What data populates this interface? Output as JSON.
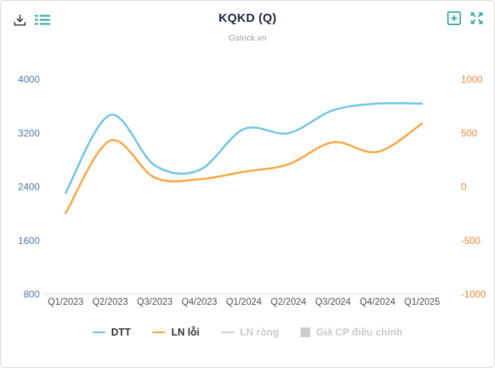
{
  "header": {
    "title": "KQKD (Q)",
    "subtitle": "Gstock.vn",
    "toolbar_left": [
      {
        "icon": "download-icon"
      },
      {
        "icon": "list-icon"
      }
    ],
    "toolbar_right": [
      {
        "icon": "plus-square-icon"
      },
      {
        "icon": "fullscreen-icon"
      }
    ]
  },
  "colors": {
    "accent_teal": "#2aa79e",
    "dark_icon": "#3e4a56",
    "dtt_line": "#6ec4e8",
    "ln_line": "#f7a742",
    "left_axis_label": "#4a74a8",
    "right_axis_label": "#ee8434",
    "x_axis_label": "#4f4f4f",
    "axis_line": "#e0e0e0",
    "legend_disabled": "#cccccc",
    "title_text": "#1b2740",
    "subtitle_text": "#9b9b9b"
  },
  "chart_data": {
    "type": "line",
    "smoothing": "spline",
    "grid": "off",
    "legend_position": "bottom",
    "title": "KQKD (Q)",
    "subtitle": "Gstock.vn",
    "categories": [
      "Q1/2023",
      "Q2/2023",
      "Q3/2023",
      "Q4/2023",
      "Q1/2024",
      "Q2/2024",
      "Q3/2024",
      "Q4/2024",
      "Q1/2025"
    ],
    "y_axis_left": {
      "ticks": [
        4000,
        3200,
        2400,
        1600,
        800
      ],
      "min": 800,
      "max": 4000,
      "color": "#4a74a8"
    },
    "y_axis_right": {
      "ticks": [
        1000,
        500,
        0,
        -500,
        -1000
      ],
      "min": -1000,
      "max": 1000,
      "color": "#ee8434"
    },
    "series": [
      {
        "name": "DTT",
        "axis": "left",
        "color": "#6ec4e8",
        "visible": true,
        "values": [
          2310,
          3470,
          2720,
          2650,
          3260,
          3200,
          3540,
          3640,
          3640
        ]
      },
      {
        "name": "LN lỗi",
        "axis": "right",
        "color": "#f7a742",
        "visible": true,
        "values": [
          -245,
          430,
          85,
          70,
          140,
          210,
          415,
          325,
          590
        ]
      },
      {
        "name": "LN ròng",
        "axis": "right",
        "color": "#cccccc",
        "visible": false,
        "values": []
      },
      {
        "name": "Giá CP điều chỉnh",
        "axis": "right",
        "color": "#cccccc",
        "visible": false,
        "values": []
      }
    ]
  },
  "legend": {
    "items": [
      {
        "label": "DTT",
        "marker": "line",
        "color": "#6ec4e8",
        "active": true
      },
      {
        "label": "LN lỗi",
        "marker": "line",
        "color": "#f7a742",
        "active": true
      },
      {
        "label": "LN ròng",
        "marker": "line",
        "color": "#cccccc",
        "active": false
      },
      {
        "label": "Giá CP điều chỉnh",
        "marker": "square",
        "color": "#cccccc",
        "active": false
      }
    ]
  }
}
